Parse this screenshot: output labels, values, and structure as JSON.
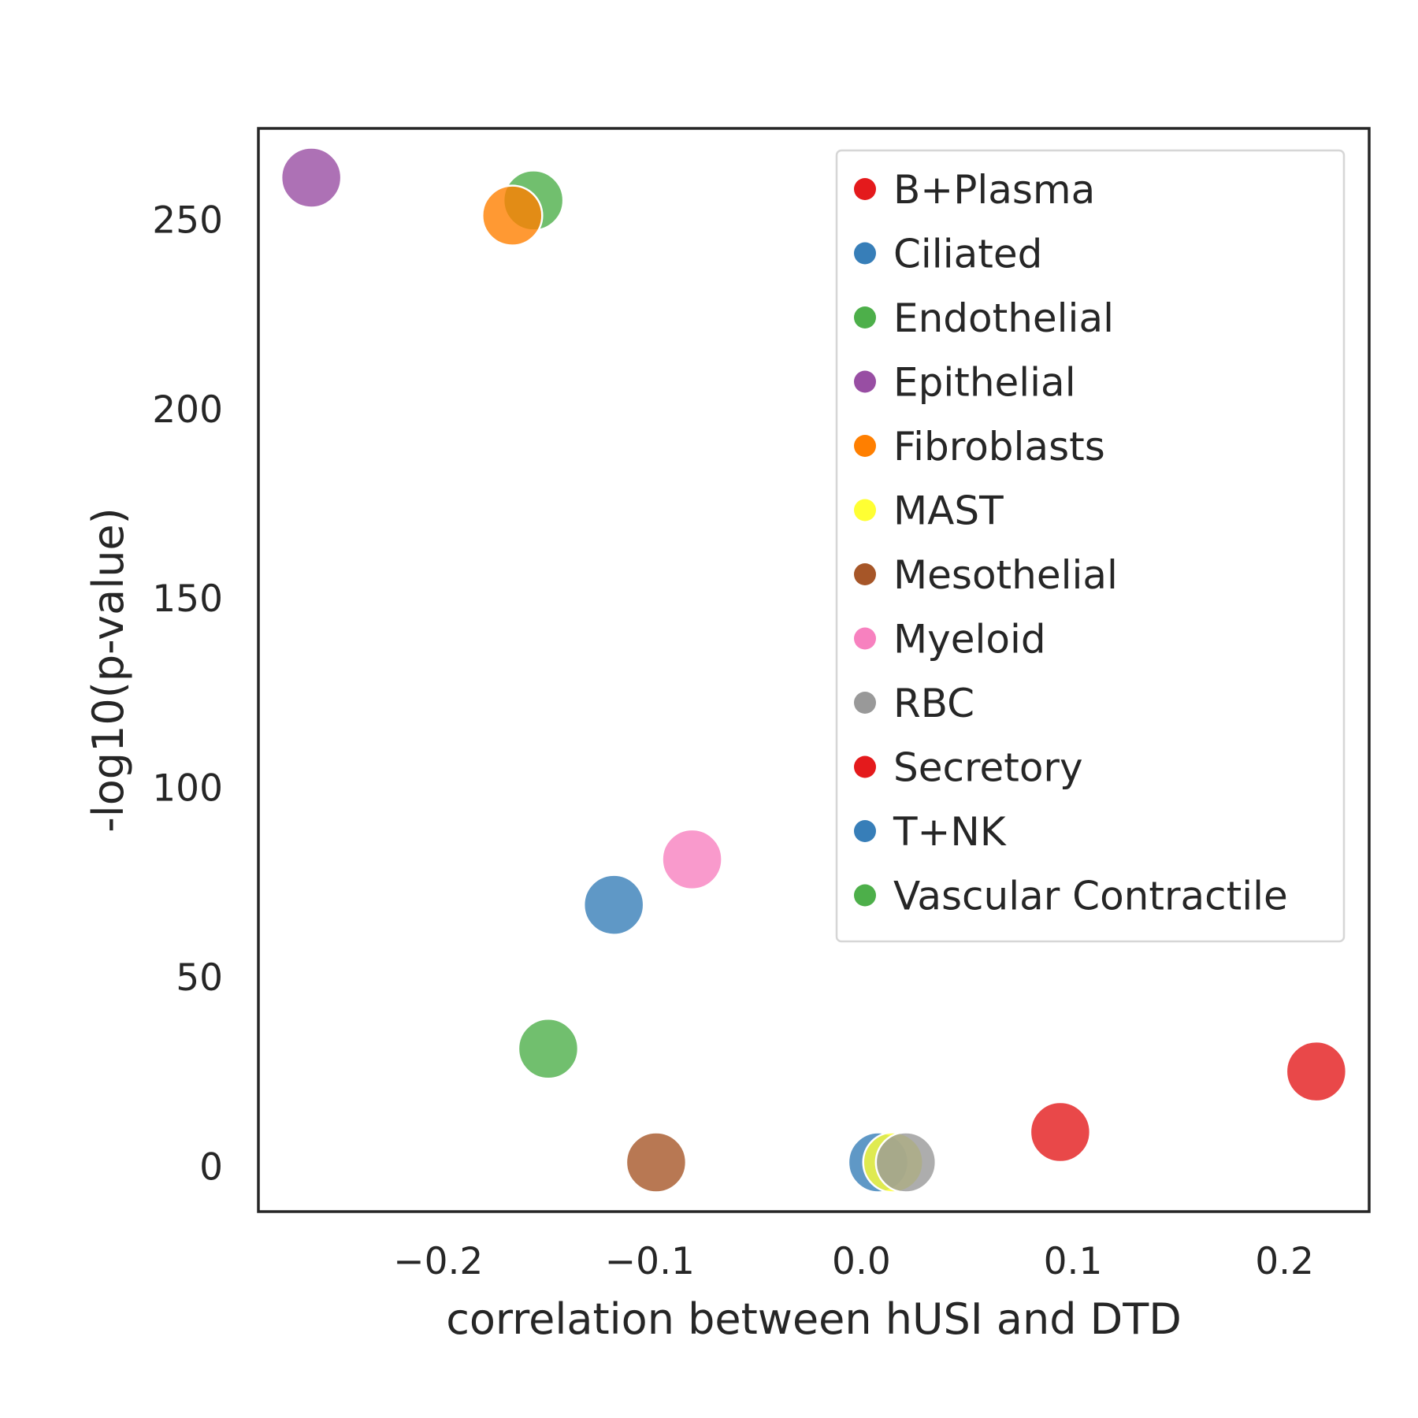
{
  "chart_data": {
    "type": "scatter",
    "title": "",
    "xlabel": "correlation between hUSI and DTD",
    "ylabel": "-log10(p-value)",
    "xlim": [
      -0.285,
      0.24
    ],
    "ylim": [
      -12,
      274
    ],
    "xticks": [
      -0.2,
      -0.1,
      0.0,
      0.1,
      0.2
    ],
    "xtick_labels": [
      "−0.2",
      "−0.1",
      "0.0",
      "0.1",
      "0.2"
    ],
    "yticks": [
      0,
      50,
      100,
      150,
      200,
      250
    ],
    "ytick_labels": [
      "0",
      "50",
      "100",
      "150",
      "200",
      "250"
    ],
    "grid": false,
    "legend_position": "top-right",
    "series": [
      {
        "name": "B+Plasma",
        "color": "#e41a1c",
        "x": 0.215,
        "y": 25
      },
      {
        "name": "Ciliated",
        "color": "#377eb8",
        "x": 0.008,
        "y": 1
      },
      {
        "name": "Endothelial",
        "color": "#4daf4a",
        "x": -0.155,
        "y": 255
      },
      {
        "name": "Epithelial",
        "color": "#984ea3",
        "x": -0.26,
        "y": 261
      },
      {
        "name": "Fibroblasts",
        "color": "#ff7f00",
        "x": -0.165,
        "y": 251
      },
      {
        "name": "MAST",
        "color": "#ffff33",
        "x": 0.015,
        "y": 1
      },
      {
        "name": "Mesothelial",
        "color": "#a65628",
        "x": -0.097,
        "y": 1
      },
      {
        "name": "Myeloid",
        "color": "#f781bf",
        "x": -0.08,
        "y": 81
      },
      {
        "name": "RBC",
        "color": "#999999",
        "x": 0.021,
        "y": 1
      },
      {
        "name": "Secretory",
        "color": "#e41a1c",
        "x": 0.094,
        "y": 9
      },
      {
        "name": "T+NK",
        "color": "#377eb8",
        "x": -0.117,
        "y": 69
      },
      {
        "name": "Vascular Contractile",
        "color": "#4daf4a",
        "x": -0.148,
        "y": 31
      }
    ]
  }
}
